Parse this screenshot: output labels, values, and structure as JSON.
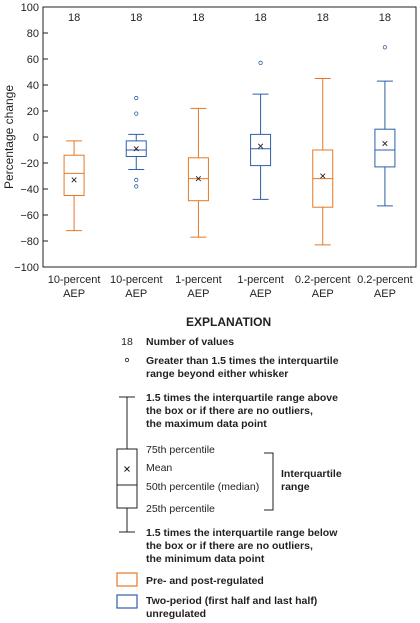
{
  "chart_data": {
    "type": "box",
    "ylabel": "Percentage change",
    "ylim": [
      -100,
      100
    ],
    "yticks": [
      100,
      80,
      60,
      40,
      20,
      0,
      -20,
      -40,
      -60,
      -80,
      -100
    ],
    "series_colors": {
      "orange": "#e87722",
      "blue": "#2e5fa8"
    },
    "boxes": [
      {
        "label1": "10-percent",
        "label2": "AEP",
        "color": "orange",
        "count": "18",
        "min": -72,
        "q1": -45,
        "median": -28,
        "mean": -33,
        "q3": -14,
        "max": -3,
        "outliers": []
      },
      {
        "label1": "10-percent",
        "label2": "AEP",
        "color": "blue",
        "count": "18",
        "min": -25,
        "q1": -15,
        "median": -10,
        "mean": -9,
        "q3": -3,
        "max": 2,
        "outliers": [
          30,
          18,
          -33,
          -38
        ]
      },
      {
        "label1": "1-percent",
        "label2": "AEP",
        "color": "orange",
        "count": "18",
        "min": -77,
        "q1": -49,
        "median": -32,
        "mean": -32,
        "q3": -16,
        "max": 22,
        "outliers": []
      },
      {
        "label1": "1-percent",
        "label2": "AEP",
        "color": "blue",
        "count": "18",
        "min": -48,
        "q1": -22,
        "median": -9,
        "mean": -7,
        "q3": 2,
        "max": 33,
        "outliers": [
          57
        ]
      },
      {
        "label1": "0.2-percent",
        "label2": "AEP",
        "color": "orange",
        "count": "18",
        "min": -83,
        "q1": -54,
        "median": -32,
        "mean": -30,
        "q3": -10,
        "max": 45,
        "outliers": []
      },
      {
        "label1": "0.2-percent",
        "label2": "AEP",
        "color": "blue",
        "count": "18",
        "min": -53,
        "q1": -23,
        "median": -10,
        "mean": -5,
        "q3": 6,
        "max": 43,
        "outliers": [
          69
        ]
      }
    ]
  },
  "legend": {
    "title": "EXPLANATION",
    "count_example": "18",
    "number_of_values": "Number of values",
    "outlier_1": "Greater than 1.5 times the interquartile",
    "outlier_2": "range beyond either whisker",
    "max_1": "1.5 times the interquartile range above",
    "max_2": "the box or if there are no outliers,",
    "max_3": "the maximum data point",
    "p75": "75th percentile",
    "mean": "Mean",
    "median": "50th percentile (median)",
    "p25": "25th percentile",
    "iqr_1": "Interquartile",
    "iqr_2": "range",
    "min_1": "1.5 times the interquartile range below",
    "min_2": "the box or if there are no outliers,",
    "min_3": "the minimum data point",
    "orange_label": "Pre- and post-regulated",
    "blue_label_1": "Two-period (first half and last half)",
    "blue_label_2": "unregulated"
  }
}
